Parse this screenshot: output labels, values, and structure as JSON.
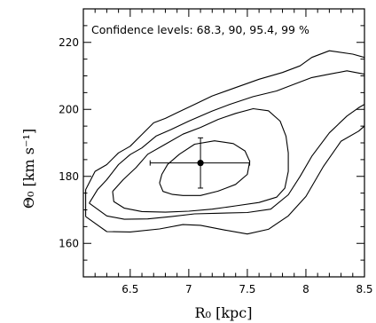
{
  "chart_data": {
    "type": "contour",
    "annotation": "Confidence levels: 68.3, 90, 95.4, 99 %",
    "xlabel": "R₀ [kpc]",
    "ylabel": "Θ₀ [km s⁻¹]",
    "xlim": [
      6.1,
      8.5
    ],
    "ylim": [
      150,
      230
    ],
    "x_ticks": [
      6.5,
      7,
      7.5,
      8,
      8.5
    ],
    "y_ticks": [
      160,
      180,
      200,
      220
    ],
    "x_tick_labels": [
      "6.5",
      "7",
      "7.5",
      "8",
      "8.5"
    ],
    "y_tick_labels": [
      "160",
      "180",
      "200",
      "220"
    ],
    "grid": false,
    "point": {
      "x": 7.1,
      "y": 184,
      "xerr": [
        0.43,
        0.42
      ],
      "yerr": [
        7.5,
        7.5
      ]
    },
    "contours": [
      {
        "level": "68.3",
        "points": [
          [
            6.75,
            178
          ],
          [
            6.78,
            175.5
          ],
          [
            6.86,
            174.6
          ],
          [
            6.95,
            174.3
          ],
          [
            7.1,
            174.3
          ],
          [
            7.25,
            175.6
          ],
          [
            7.4,
            177.6
          ],
          [
            7.5,
            180.6
          ],
          [
            7.52,
            184.5
          ],
          [
            7.48,
            187.6
          ],
          [
            7.38,
            189.8
          ],
          [
            7.22,
            190.6
          ],
          [
            7.05,
            189.6
          ],
          [
            6.92,
            186.6
          ],
          [
            6.82,
            183.6
          ],
          [
            6.77,
            180.6
          ],
          [
            6.75,
            178
          ]
        ]
      },
      {
        "level": "90",
        "points": [
          [
            6.35,
            175.5
          ],
          [
            6.36,
            172.5
          ],
          [
            6.45,
            170.5
          ],
          [
            6.6,
            169.5
          ],
          [
            6.8,
            169.3
          ],
          [
            7.0,
            169.6
          ],
          [
            7.2,
            170.2
          ],
          [
            7.4,
            171.2
          ],
          [
            7.6,
            172.2
          ],
          [
            7.75,
            173.8
          ],
          [
            7.82,
            176.5
          ],
          [
            7.85,
            181.5
          ],
          [
            7.85,
            187
          ],
          [
            7.83,
            192
          ],
          [
            7.78,
            196.5
          ],
          [
            7.68,
            199.6
          ],
          [
            7.55,
            200.2
          ],
          [
            7.4,
            198.8
          ],
          [
            7.25,
            197
          ],
          [
            7.1,
            194.6
          ],
          [
            6.95,
            192.6
          ],
          [
            6.8,
            189.6
          ],
          [
            6.65,
            186.6
          ],
          [
            6.55,
            182.6
          ],
          [
            6.44,
            179
          ],
          [
            6.35,
            175.5
          ]
        ]
      },
      {
        "level": "95.4",
        "points": [
          [
            6.15,
            172
          ],
          [
            6.3,
            168.2
          ],
          [
            6.45,
            167.2
          ],
          [
            6.65,
            167.3
          ],
          [
            6.85,
            168
          ],
          [
            7.05,
            168.8
          ],
          [
            7.25,
            169
          ],
          [
            7.5,
            169.2
          ],
          [
            7.7,
            170.2
          ],
          [
            7.85,
            174.5
          ],
          [
            7.95,
            180
          ],
          [
            8.05,
            186
          ],
          [
            8.2,
            193
          ],
          [
            8.35,
            198
          ],
          [
            8.45,
            200.5
          ],
          [
            8.5,
            201.5
          ],
          [
            8.5,
            210.5
          ],
          [
            8.35,
            211.5
          ],
          [
            8.2,
            210.5
          ],
          [
            8.05,
            209.5
          ],
          [
            7.9,
            207.5
          ],
          [
            7.75,
            205.5
          ],
          [
            7.55,
            203.8
          ],
          [
            7.35,
            201.5
          ],
          [
            7.2,
            199.5
          ],
          [
            7.0,
            196.5
          ],
          [
            6.85,
            194
          ],
          [
            6.72,
            192
          ],
          [
            6.6,
            188.5
          ],
          [
            6.5,
            186.5
          ],
          [
            6.4,
            183.5
          ],
          [
            6.3,
            179
          ],
          [
            6.22,
            176
          ],
          [
            6.15,
            172
          ]
        ]
      },
      {
        "level": "99",
        "points": [
          [
            6.12,
            168
          ],
          [
            6.3,
            163.5
          ],
          [
            6.5,
            163.4
          ],
          [
            6.75,
            164.3
          ],
          [
            6.95,
            165.6
          ],
          [
            7.1,
            165.4
          ],
          [
            7.3,
            164
          ],
          [
            7.5,
            162.8
          ],
          [
            7.68,
            164.2
          ],
          [
            7.85,
            168.2
          ],
          [
            8.0,
            174
          ],
          [
            8.15,
            183
          ],
          [
            8.3,
            190.5
          ],
          [
            8.45,
            193.5
          ],
          [
            8.5,
            195
          ],
          [
            8.5,
            215.5
          ],
          [
            8.4,
            216.5
          ],
          [
            8.2,
            217.5
          ],
          [
            8.05,
            215.5
          ],
          [
            7.95,
            213
          ],
          [
            7.8,
            211
          ],
          [
            7.6,
            209
          ],
          [
            7.4,
            206.5
          ],
          [
            7.2,
            204
          ],
          [
            7.05,
            201.5
          ],
          [
            6.9,
            199
          ],
          [
            6.8,
            197.3
          ],
          [
            6.7,
            196
          ],
          [
            6.6,
            192.5
          ],
          [
            6.5,
            189
          ],
          [
            6.4,
            187
          ],
          [
            6.3,
            183.5
          ],
          [
            6.2,
            181.5
          ],
          [
            6.12,
            176
          ],
          [
            6.12,
            168
          ]
        ]
      }
    ]
  }
}
